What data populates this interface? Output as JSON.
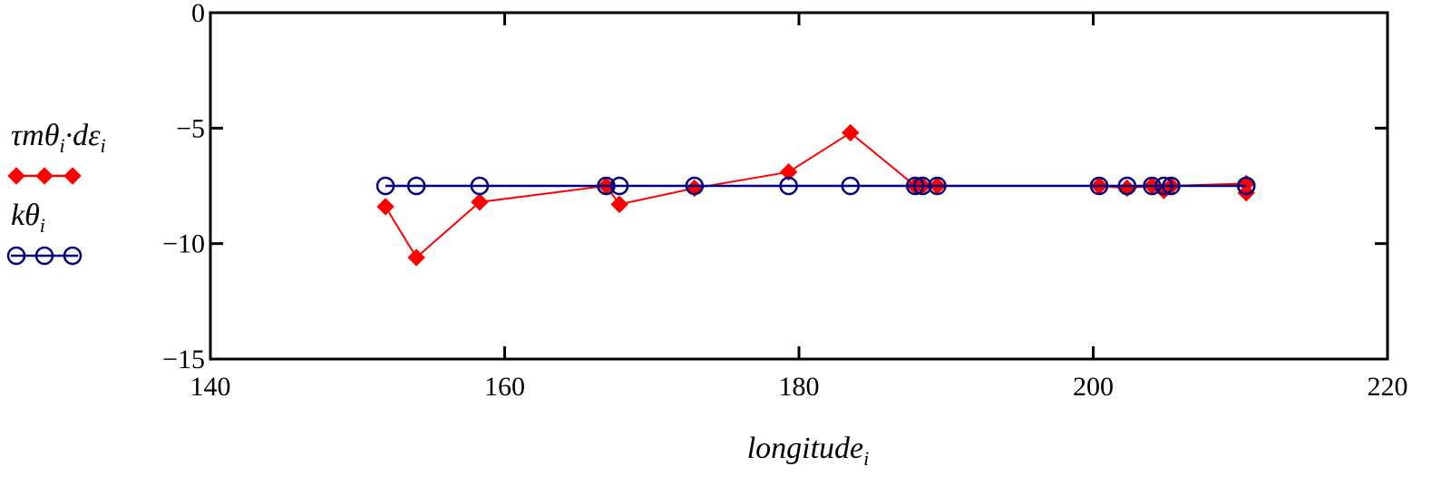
{
  "chart_data": {
    "type": "line",
    "title": "",
    "xlabel": {
      "main": "longitude",
      "sub": "i"
    },
    "ylabel": "",
    "xlim": [
      140,
      220
    ],
    "ylim": [
      -15,
      0
    ],
    "xticks": [
      140,
      160,
      180,
      200,
      220
    ],
    "yticks": [
      0,
      -5,
      -10,
      -15
    ],
    "xtick_labels": [
      "140",
      "160",
      "180",
      "200",
      "220"
    ],
    "ytick_labels": [
      "0",
      "−5",
      "−10",
      "−15"
    ],
    "grid": false,
    "legend_position": "left",
    "series": [
      {
        "legend_parts": [
          {
            "t": "τmθ",
            "sub": false
          },
          {
            "t": "i",
            "sub": true
          },
          {
            "t": "·dε",
            "sub": false
          },
          {
            "t": "i",
            "sub": true
          }
        ],
        "color": "#ff0000",
        "marker": "diamond",
        "points": [
          [
            151.9,
            -8.4
          ],
          [
            154.0,
            -10.6
          ],
          [
            158.3,
            -8.2
          ],
          [
            166.9,
            -7.5
          ],
          [
            167.8,
            -8.3
          ],
          [
            172.9,
            -7.6
          ],
          [
            179.3,
            -6.9
          ],
          [
            183.5,
            -5.2
          ],
          [
            187.9,
            -7.5
          ],
          [
            188.4,
            -7.5
          ],
          [
            189.4,
            -7.5
          ],
          [
            200.4,
            -7.5
          ],
          [
            202.3,
            -7.6
          ],
          [
            204.0,
            -7.5
          ],
          [
            204.8,
            -7.7
          ],
          [
            205.3,
            -7.5
          ],
          [
            210.4,
            -7.4
          ],
          [
            210.4,
            -7.8
          ]
        ]
      },
      {
        "legend_parts": [
          {
            "t": "kθ",
            "sub": false
          },
          {
            "t": "i",
            "sub": true
          }
        ],
        "color": "#000080",
        "marker": "circle",
        "points": [
          [
            151.9,
            -7.5
          ],
          [
            154.0,
            -7.5
          ],
          [
            158.3,
            -7.5
          ],
          [
            166.9,
            -7.5
          ],
          [
            167.8,
            -7.5
          ],
          [
            172.9,
            -7.5
          ],
          [
            179.3,
            -7.5
          ],
          [
            183.5,
            -7.5
          ],
          [
            187.9,
            -7.5
          ],
          [
            188.4,
            -7.5
          ],
          [
            189.4,
            -7.5
          ],
          [
            200.4,
            -7.5
          ],
          [
            202.3,
            -7.5
          ],
          [
            204.0,
            -7.5
          ],
          [
            204.8,
            -7.5
          ],
          [
            205.3,
            -7.5
          ],
          [
            210.4,
            -7.5
          ],
          [
            210.4,
            -7.5
          ]
        ]
      }
    ]
  }
}
